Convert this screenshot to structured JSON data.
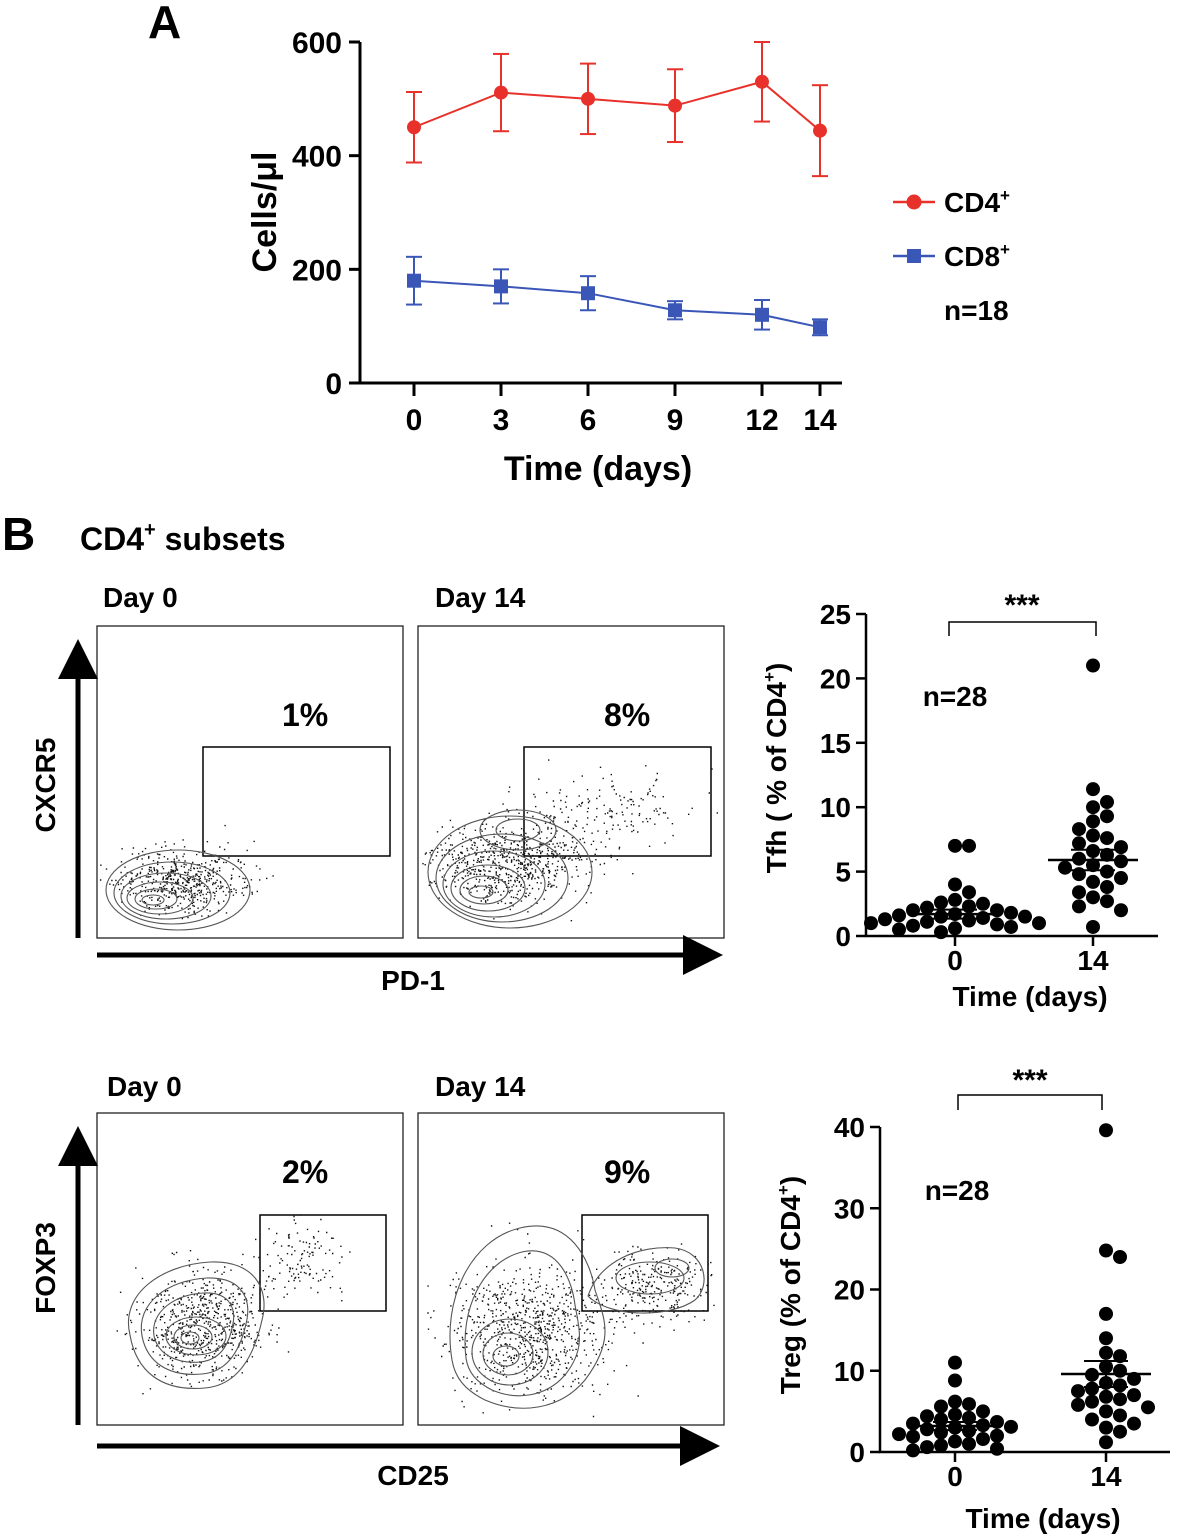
{
  "panels": {
    "A": {
      "letter": "A"
    },
    "B": {
      "letter": "B",
      "title": "CD4",
      "title_sup": "+",
      "title_rest": " subsets"
    }
  },
  "chart_data": [
    {
      "id": "A",
      "type": "line",
      "title": "",
      "xlabel": "Time (days)",
      "ylabel": "Cells/μl",
      "x": [
        0,
        3,
        6,
        9,
        12,
        14
      ],
      "ylim": [
        0,
        600
      ],
      "yticks": [
        0,
        200,
        400,
        600
      ],
      "series": [
        {
          "name": "CD4",
          "sup": "+",
          "color": "#e8312a",
          "marker": "circle",
          "values": [
            450,
            511,
            500,
            488,
            530,
            444
          ],
          "err": [
            62,
            68,
            62,
            64,
            70,
            80
          ]
        },
        {
          "name": "CD8",
          "sup": "+",
          "color": "#3a57b8",
          "marker": "square",
          "values": [
            180,
            170,
            158,
            128,
            120,
            98
          ],
          "err": [
            42,
            30,
            30,
            16,
            26,
            14
          ]
        }
      ],
      "annotation": "n=18"
    },
    {
      "id": "tfh",
      "type": "scatter",
      "categories": [
        "0",
        "14"
      ],
      "xlabel": "Time (days)",
      "ylabel": "Tfh ( % of CD4",
      "ylabel_sup": "+",
      "ylabel_end": ")",
      "ylim": [
        0,
        25
      ],
      "yticks": [
        0,
        5,
        10,
        15,
        20,
        25
      ],
      "annotation": "n=28",
      "significance": "***",
      "groups": [
        {
          "label": "0",
          "mean": 1.7,
          "sem": 0.35,
          "values": [
            7.0,
            7.0,
            4.0,
            3.4,
            2.8,
            2.6,
            2.5,
            2.3,
            2.2,
            2.0,
            2.0,
            1.8,
            1.7,
            1.6,
            1.5,
            1.5,
            1.4,
            1.3,
            1.2,
            1.1,
            1.0,
            1.0,
            0.9,
            0.8,
            0.7,
            0.6,
            0.5,
            0.3
          ]
        },
        {
          "label": "14",
          "mean": 5.9,
          "sem": 0.8,
          "values": [
            21.0,
            11.4,
            10.4,
            10.0,
            9.3,
            8.9,
            8.3,
            7.8,
            7.6,
            7.2,
            6.9,
            6.6,
            6.3,
            6.0,
            5.8,
            5.5,
            5.3,
            5.0,
            4.8,
            4.5,
            4.2,
            3.8,
            3.4,
            3.0,
            2.7,
            2.3,
            2.0,
            0.7
          ]
        }
      ]
    },
    {
      "id": "treg",
      "type": "scatter",
      "categories": [
        "0",
        "14"
      ],
      "xlabel": "Time (days)",
      "ylabel": "Treg (% of CD4",
      "ylabel_sup": "+",
      "ylabel_end": ")",
      "ylim": [
        0,
        40
      ],
      "yticks": [
        0,
        10,
        20,
        30,
        40
      ],
      "annotation": "n=28",
      "significance": "***",
      "groups": [
        {
          "label": "0",
          "mean": 3.2,
          "sem": 0.5,
          "values": [
            11.0,
            8.8,
            6.2,
            5.9,
            5.6,
            5.0,
            4.6,
            4.4,
            4.2,
            4.0,
            3.7,
            3.5,
            3.3,
            3.1,
            3.0,
            2.8,
            2.6,
            2.4,
            2.2,
            2.0,
            1.9,
            1.6,
            1.3,
            1.0,
            0.8,
            0.6,
            0.4,
            0.2
          ]
        },
        {
          "label": "14",
          "mean": 9.6,
          "sem": 1.6,
          "values": [
            39.6,
            24.8,
            24.0,
            17.0,
            14.0,
            12.2,
            11.8,
            10.5,
            10.0,
            9.5,
            9.0,
            8.5,
            8.2,
            7.8,
            7.5,
            7.0,
            6.8,
            6.5,
            6.2,
            5.8,
            5.5,
            5.0,
            4.5,
            4.0,
            3.5,
            3.0,
            2.5,
            1.2
          ]
        }
      ]
    }
  ],
  "flow": {
    "rows": [
      {
        "yaxis": "CXCR5",
        "xaxis": "PD-1",
        "plots": [
          {
            "day": "Day 0",
            "pct": "1%"
          },
          {
            "day": "Day 14",
            "pct": "8%"
          }
        ]
      },
      {
        "yaxis": "FOXP3",
        "xaxis": "CD25",
        "plots": [
          {
            "day": "Day 0",
            "pct": "2%"
          },
          {
            "day": "Day 14",
            "pct": "9%"
          }
        ]
      }
    ]
  }
}
